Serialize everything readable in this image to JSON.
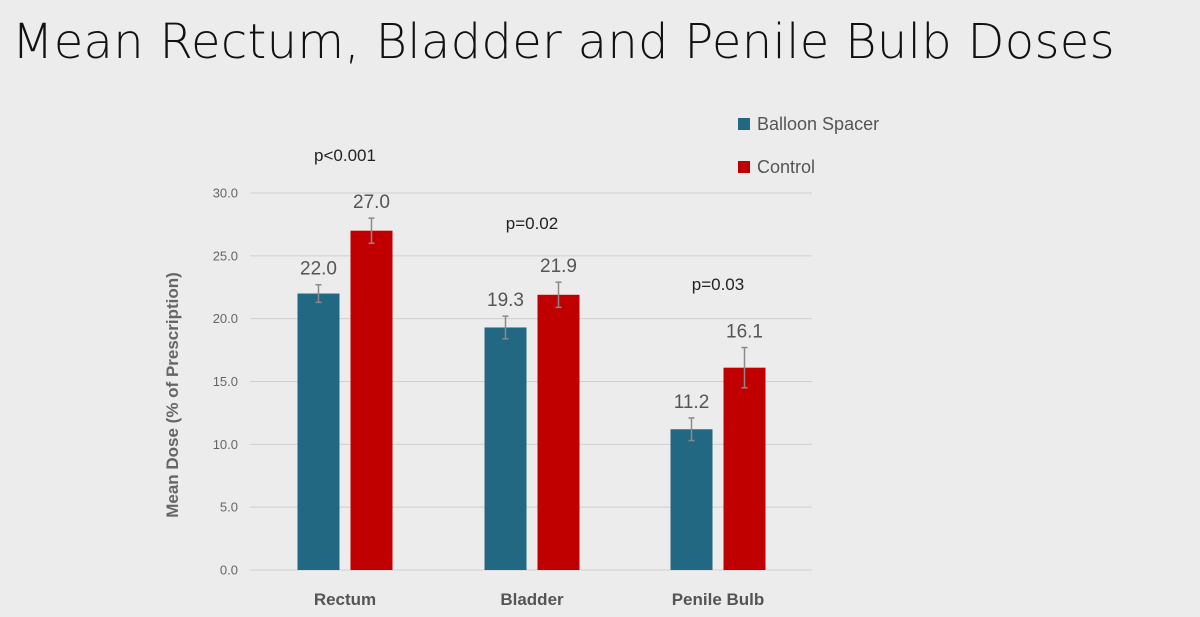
{
  "slide": {
    "title": "Mean Rectum, Bladder and Penile Bulb Doses"
  },
  "chart_data": {
    "type": "bar",
    "categories": [
      "Rectum",
      "Bladder",
      "Penile Bulb"
    ],
    "series": [
      {
        "name": "Balloon Spacer",
        "color": "#236882",
        "values": [
          22.0,
          19.3,
          11.2
        ],
        "errors": [
          0.7,
          0.9,
          0.9
        ],
        "labels": [
          "22.0",
          "19.3",
          "11.2"
        ]
      },
      {
        "name": "Control",
        "color": "#c00000",
        "values": [
          27.0,
          21.9,
          16.1
        ],
        "errors": [
          1.0,
          1.0,
          1.6
        ],
        "labels": [
          "27.0",
          "21.9",
          "16.1"
        ]
      }
    ],
    "p_values": [
      "p<0.001",
      "p=0.02",
      "p=0.03"
    ],
    "ylabel": "Mean Dose (% of Prescription)",
    "ylim": [
      0,
      30
    ],
    "yticks": [
      0,
      5,
      10,
      15,
      20,
      25,
      30
    ],
    "ytick_labels": [
      "0.0",
      "5.0",
      "10.0",
      "15.0",
      "20.0",
      "25.0",
      "30.0"
    ],
    "grid": true,
    "legend_position": "top-right",
    "gridline_color": "#d0d0d0",
    "errorbar_color": "#8a8a8a"
  }
}
